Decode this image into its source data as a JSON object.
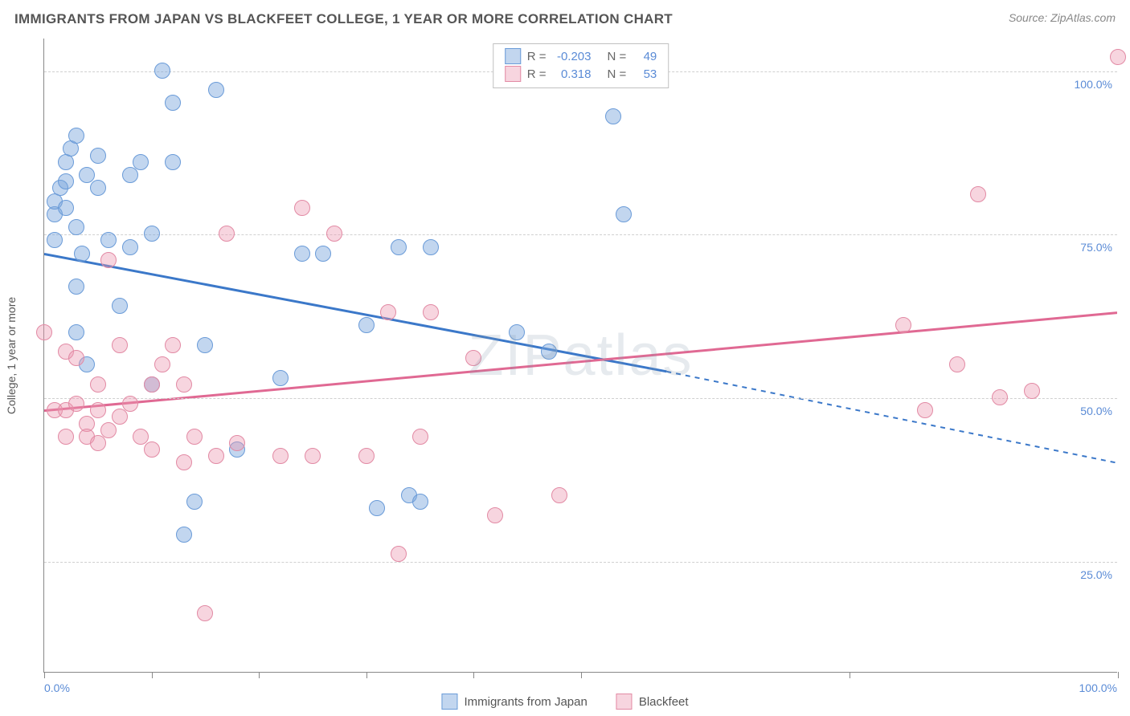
{
  "title": "IMMIGRANTS FROM JAPAN VS BLACKFEET COLLEGE, 1 YEAR OR MORE CORRELATION CHART",
  "source": "Source: ZipAtlas.com",
  "watermark": "ZIPatlas",
  "ylabel": "College, 1 year or more",
  "chart": {
    "type": "scatter",
    "xlim": [
      0,
      100
    ],
    "ylim": [
      8,
      105
    ],
    "y_gridlines": [
      25,
      50,
      75,
      100
    ],
    "y_tick_labels": [
      "25.0%",
      "50.0%",
      "75.0%",
      "100.0%"
    ],
    "x_ticks_at": [
      0,
      10,
      20,
      30,
      40,
      50,
      75,
      100
    ],
    "x_end_labels": [
      "0.0%",
      "100.0%"
    ],
    "grid_color": "#d0d0d0",
    "background_color": "#ffffff",
    "point_radius": 10,
    "series": [
      {
        "name": "Immigrants from Japan",
        "fill": "rgba(120,165,220,0.45)",
        "stroke": "#6a9bd8",
        "line_color": "#3b78c9",
        "R": "-0.203",
        "N": "49",
        "trend": {
          "x1": 0,
          "y1": 72,
          "x2_solid": 58,
          "y2_solid": 54,
          "x2": 100,
          "y2": 40
        },
        "points": [
          [
            1,
            78
          ],
          [
            1,
            80
          ],
          [
            1.5,
            82
          ],
          [
            1,
            74
          ],
          [
            2,
            86
          ],
          [
            2,
            83
          ],
          [
            2,
            79
          ],
          [
            2.5,
            88
          ],
          [
            3,
            76
          ],
          [
            3,
            90
          ],
          [
            3,
            60
          ],
          [
            3,
            67
          ],
          [
            3.5,
            72
          ],
          [
            4,
            84
          ],
          [
            4,
            55
          ],
          [
            5,
            87
          ],
          [
            5,
            82
          ],
          [
            6,
            74
          ],
          [
            7,
            64
          ],
          [
            8,
            84
          ],
          [
            8,
            73
          ],
          [
            9,
            86
          ],
          [
            10,
            75
          ],
          [
            10,
            52
          ],
          [
            11,
            100
          ],
          [
            12,
            95
          ],
          [
            12,
            86
          ],
          [
            13,
            29
          ],
          [
            14,
            34
          ],
          [
            15,
            58
          ],
          [
            16,
            97
          ],
          [
            18,
            42
          ],
          [
            22,
            53
          ],
          [
            24,
            72
          ],
          [
            26,
            72
          ],
          [
            30,
            61
          ],
          [
            31,
            33
          ],
          [
            33,
            73
          ],
          [
            34,
            35
          ],
          [
            35,
            34
          ],
          [
            36,
            73
          ],
          [
            44,
            60
          ],
          [
            47,
            57
          ],
          [
            53,
            93
          ],
          [
            54,
            78
          ]
        ]
      },
      {
        "name": "Blackfeet",
        "fill": "rgba(235,150,175,0.40)",
        "stroke": "#e28aa4",
        "line_color": "#e06993",
        "R": "0.318",
        "N": "53",
        "trend": {
          "x1": 0,
          "y1": 48,
          "x2_solid": 100,
          "y2_solid": 63,
          "x2": 100,
          "y2": 63
        },
        "points": [
          [
            0,
            60
          ],
          [
            1,
            48
          ],
          [
            2,
            48
          ],
          [
            2,
            57
          ],
          [
            2,
            44
          ],
          [
            3,
            49
          ],
          [
            3,
            56
          ],
          [
            4,
            46
          ],
          [
            4,
            44
          ],
          [
            5,
            48
          ],
          [
            5,
            52
          ],
          [
            5,
            43
          ],
          [
            6,
            45
          ],
          [
            6,
            71
          ],
          [
            7,
            58
          ],
          [
            7,
            47
          ],
          [
            8,
            49
          ],
          [
            9,
            44
          ],
          [
            10,
            42
          ],
          [
            10,
            52
          ],
          [
            11,
            55
          ],
          [
            12,
            58
          ],
          [
            13,
            40
          ],
          [
            13,
            52
          ],
          [
            14,
            44
          ],
          [
            15,
            17
          ],
          [
            16,
            41
          ],
          [
            17,
            75
          ],
          [
            18,
            43
          ],
          [
            22,
            41
          ],
          [
            24,
            79
          ],
          [
            25,
            41
          ],
          [
            27,
            75
          ],
          [
            30,
            41
          ],
          [
            32,
            63
          ],
          [
            33,
            26
          ],
          [
            35,
            44
          ],
          [
            36,
            63
          ],
          [
            40,
            56
          ],
          [
            42,
            32
          ],
          [
            48,
            35
          ],
          [
            80,
            61
          ],
          [
            82,
            48
          ],
          [
            85,
            55
          ],
          [
            87,
            81
          ],
          [
            89,
            50
          ],
          [
            92,
            51
          ],
          [
            100,
            102
          ]
        ]
      }
    ]
  },
  "legend_bottom": [
    "Immigrants from Japan",
    "Blackfeet"
  ],
  "legend_top": {
    "rows": [
      {
        "swatch_fill": "rgba(120,165,220,0.45)",
        "swatch_stroke": "#6a9bd8",
        "r_label": "R =",
        "r_val": "-0.203",
        "n_label": "N =",
        "n_val": "49"
      },
      {
        "swatch_fill": "rgba(235,150,175,0.40)",
        "swatch_stroke": "#e28aa4",
        "r_label": "R =",
        "r_val": "0.318",
        "n_label": "N =",
        "n_val": "53"
      }
    ]
  }
}
